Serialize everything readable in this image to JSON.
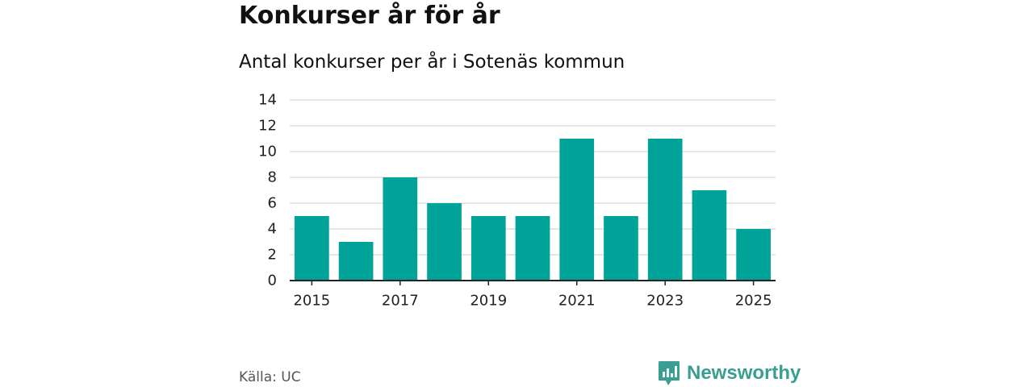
{
  "title": "Konkurser år för år",
  "subtitle": "Antal konkurser per år i Sotenäs kommun",
  "source": "Källa: UC",
  "brand": {
    "name": "Newsworthy",
    "icon": "newsworthy-logo-icon"
  },
  "colors": {
    "bar": "#00a398",
    "brand": "#3a9e93",
    "grid": "#dddddd",
    "axis": "#222222"
  },
  "chart_data": {
    "type": "bar",
    "title": "Konkurser år för år",
    "subtitle": "Antal konkurser per år i Sotenäs kommun",
    "categories": [
      "2015",
      "2016",
      "2017",
      "2018",
      "2019",
      "2020",
      "2021",
      "2022",
      "2023",
      "2024",
      "2025"
    ],
    "values": [
      5,
      3,
      8,
      6,
      5,
      5,
      11,
      5,
      11,
      7,
      4
    ],
    "x_tick_labels": [
      "2015",
      "2017",
      "2019",
      "2021",
      "2023",
      "2025"
    ],
    "y_ticks": [
      0,
      2,
      4,
      6,
      8,
      10,
      12,
      14
    ],
    "ylim": [
      0,
      14
    ],
    "xlabel": "",
    "ylabel": "",
    "grid": true,
    "legend": "none"
  }
}
